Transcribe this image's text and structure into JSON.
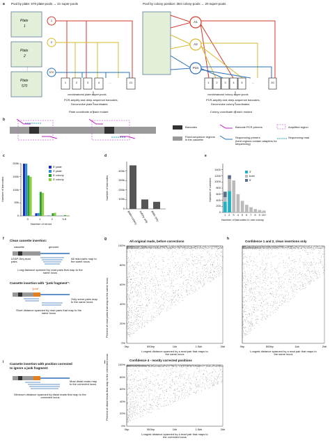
{
  "panel_a": {
    "letter": "a",
    "left_title": "Pool by plate: 570 plate-pools → 21 super-pools",
    "right_title": "Pool by colony position: 384 colony-pools → 20 super-pools",
    "plates": [
      {
        "line1": "Plate",
        "line2": "1"
      },
      {
        "line1": "Plate",
        "line2": "2"
      },
      {
        "line1": "Plate",
        "line2": "570"
      }
    ],
    "plate_dots": "⋮",
    "plate_circles": [
      "1",
      "2",
      "570"
    ],
    "plate_pools": [
      "1",
      "2",
      "3",
      "4",
      "…",
      "21"
    ],
    "left_steps": [
      "combinatorial plate-super-pools",
      "PCR-amplify and deep-sequence barcodes,",
      "Deconvolve plate coordinates",
      "Plate coordinate of each mutant"
    ],
    "colony_circles": [
      "A1",
      "A2",
      "P24"
    ],
    "colony_pools": [
      "1",
      "2",
      "3",
      "4",
      "5",
      "…",
      "20"
    ],
    "right_steps": [
      "combinatorial colony-super-pools",
      "PCR-amplify and deep-sequence barcodes,",
      "Deconvolve colony coordinates",
      "Colony coordinate of each mutant"
    ]
  },
  "panel_b": {
    "letter": "b",
    "legend": {
      "barcodes": "Barcodes",
      "fixed": "Fixed-sequence regions in the cassette",
      "pcr": "Barcode PCR primers",
      "seq_primers": "Sequencing primers",
      "seq_primers_note": "(bent regions contain adapters for sequencing)",
      "amplified": "Amplified region",
      "seq_read": "Sequencing read"
    }
  },
  "panel_c": {
    "letter": "c",
    "chart_data": {
      "type": "bar",
      "categories": [
        "0",
        "1",
        "2",
        "3-5"
      ],
      "series": [
        {
          "name": "5' plate",
          "values": [
            210000,
            10000,
            1000,
            300
          ],
          "color": "#1d2db3"
        },
        {
          "name": "3' plate",
          "values": [
            205000,
            11000,
            1200,
            300
          ],
          "color": "#2f8bd6"
        },
        {
          "name": "5' colony",
          "values": [
            155000,
            92000,
            10000,
            3000
          ],
          "color": "#2e9e2e"
        },
        {
          "name": "3' colony",
          "values": [
            150000,
            88000,
            12000,
            2000
          ],
          "color": "#8ccf3f"
        }
      ],
      "xlabel": "Number of errors",
      "ylabel": "Number of barcodes",
      "ylim": [
        0,
        200000
      ],
      "yticks": [
        "0",
        "50k",
        "100k",
        "150k",
        "200k"
      ]
    }
  },
  "panel_d": {
    "letter": "d",
    "chart_data": {
      "type": "bar",
      "categories": [
        "plate+colony",
        "colony only",
        "plate only"
      ],
      "values": [
        460000,
        100000,
        75000
      ],
      "ylabel": "Number of barcodes",
      "ylim": [
        0,
        500000
      ],
      "yticks": [
        "0",
        "100k",
        "200k",
        "300k",
        "400k"
      ],
      "color": "#555555"
    }
  },
  "panel_e": {
    "letter": "e",
    "chart_data": {
      "type": "bar",
      "categories": [
        "1",
        "2",
        "3",
        "4",
        "5",
        "6",
        "7",
        "8",
        "9",
        "10+"
      ],
      "series": [
        {
          "name": "3'",
          "values": [
            350,
            700,
            0,
            0,
            0,
            0,
            0,
            0,
            0,
            0
          ],
          "color": "#1fb1c4"
        },
        {
          "name": "both",
          "values": [
            150,
            400,
            1050,
            600,
            380,
            250,
            170,
            110,
            80,
            60
          ],
          "color": "#bbbbbb"
        },
        {
          "name": "5'",
          "values": [
            180,
            120,
            0,
            0,
            0,
            0,
            0,
            0,
            0,
            0
          ],
          "color": "#5a6f8a"
        }
      ],
      "xlabel": "Number of barcodes in one colony",
      "ylabel": "Number of colonies",
      "ylim": [
        0,
        1600
      ],
      "yticks": [
        "0",
        "200",
        "400",
        "600",
        "800",
        "1000",
        "1200",
        "1400"
      ]
    }
  },
  "panel_f": {
    "letter": "f",
    "clean_title": "Clean cassette insertion:",
    "cassette": "cassette",
    "genome": "genome",
    "leap_seq": "LEAP-Seq read pairs",
    "all_pairs": "All read pairs map to the same locus",
    "long_distance": "Long distance spanned by read pairs that map to the same locus",
    "junk_title": "Cassette insertion with “junk fragment”:",
    "junk": "“junk”",
    "only_some": "Only some pairs map to the same locus",
    "short_distance": "Short distance spanned by read pairs that map to the same locus"
  },
  "panel_g": {
    "letter": "g",
    "chart_data": {
      "type": "scatter",
      "title": "All original reads, before corrections",
      "x_ticks": [
        "0bp",
        "500bp",
        "1kb",
        "1.5kb",
        "2kb"
      ],
      "y_ticks": [
        "0%",
        "20%",
        "40%",
        "60%",
        "80%",
        "100%"
      ],
      "xlabel": "Longest distance spanned by a read pair that maps to the same locus",
      "ylabel": "Percent of read pairs that map to the same locus",
      "xlim": [
        0,
        2000
      ],
      "ylim": [
        0,
        100
      ]
    }
  },
  "panel_h": {
    "letter": "h",
    "chart_data": {
      "type": "scatter",
      "title": "Confidence 1 and 2, clean insertions only",
      "x_ticks": [
        "0bp",
        "500bp",
        "1kb",
        "2kb"
      ],
      "xlabel": "Longest distance spanned by a read pair that maps to the same locus",
      "xlim": [
        0,
        2000
      ],
      "ylim": [
        0,
        100
      ]
    }
  },
  "panel_i": {
    "letter": "i",
    "title_line1": "Cassette insertion with position corrected",
    "title_line2": "to ignore a junk fragment:",
    "most_distal": "Most distal reads map to the corrected locus",
    "min_distance": "Minimum distance spanned by distal reads that map to the corrected locus"
  },
  "panel_j": {
    "letter": "j",
    "chart_data": {
      "type": "scatter",
      "title": "Confidence 4 - mostly corrected positions",
      "x_ticks": [
        "0bp",
        "500bp",
        "1kb",
        "1.5kb",
        "2kb"
      ],
      "y_ticks": [
        "0%",
        "20%",
        "40%",
        "60%",
        "80%",
        "100%"
      ],
      "xlabel": "Longest distance spanned by a read pair that maps to the corrected locus",
      "ylabel": "Percent of distal reads that map to the corrected locus",
      "xlim": [
        0,
        2000
      ],
      "ylim": [
        0,
        100
      ]
    }
  }
}
